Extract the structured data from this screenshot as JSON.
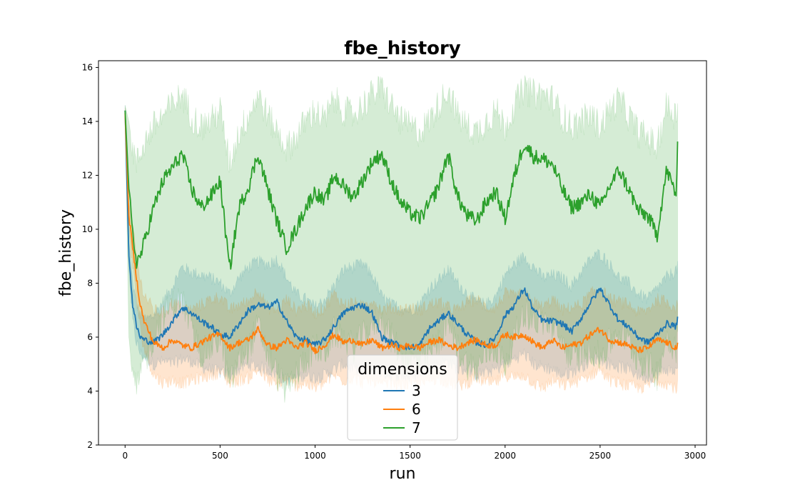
{
  "chart_data": {
    "type": "line",
    "title": "fbe_history",
    "xlabel": "run",
    "ylabel": "fbe_history",
    "xlim": [
      -140,
      3060
    ],
    "ylim": [
      2,
      16.25
    ],
    "x_ticks": [
      0,
      500,
      1000,
      1500,
      2000,
      2500,
      3000
    ],
    "y_ticks": [
      2,
      4,
      6,
      8,
      10,
      12,
      14,
      16
    ],
    "grid": false,
    "legend": {
      "title": "dimensions",
      "placement": "lower center"
    },
    "x_max": 2910,
    "series": [
      {
        "name": "3",
        "color": "#1f77b4",
        "x": [
          0,
          20,
          40,
          60,
          80,
          100,
          150,
          200,
          250,
          300,
          350,
          400,
          450,
          500,
          550,
          600,
          650,
          700,
          750,
          800,
          850,
          900,
          950,
          1000,
          1050,
          1100,
          1150,
          1200,
          1250,
          1300,
          1350,
          1400,
          1450,
          1500,
          1550,
          1600,
          1650,
          1700,
          1750,
          1800,
          1850,
          1900,
          1950,
          2000,
          2050,
          2100,
          2150,
          2200,
          2250,
          2300,
          2350,
          2400,
          2450,
          2500,
          2550,
          2600,
          2650,
          2700,
          2750,
          2800,
          2850,
          2900,
          2910
        ],
        "values": [
          14.4,
          9.0,
          7.2,
          6.4,
          6.0,
          5.9,
          5.8,
          6.1,
          6.6,
          7.1,
          6.9,
          6.6,
          6.4,
          6.1,
          6.0,
          6.5,
          7.0,
          7.2,
          7.1,
          7.3,
          6.6,
          6.0,
          5.9,
          5.7,
          5.9,
          6.4,
          6.9,
          7.1,
          7.2,
          6.9,
          6.0,
          5.8,
          5.7,
          5.6,
          5.7,
          6.3,
          6.6,
          6.9,
          6.5,
          6.1,
          5.8,
          5.7,
          6.0,
          6.8,
          7.2,
          7.8,
          7.0,
          6.6,
          6.6,
          6.5,
          6.2,
          6.7,
          7.3,
          7.8,
          7.2,
          6.6,
          6.4,
          6.0,
          5.8,
          6.1,
          6.5,
          6.4,
          6.8
        ]
      },
      {
        "name": "6",
        "color": "#ff7f0e",
        "x": [
          0,
          20,
          40,
          60,
          80,
          100,
          150,
          200,
          250,
          300,
          350,
          400,
          450,
          500,
          550,
          600,
          650,
          700,
          750,
          800,
          850,
          900,
          950,
          1000,
          1050,
          1100,
          1150,
          1200,
          1250,
          1300,
          1350,
          1400,
          1450,
          1500,
          1550,
          1600,
          1650,
          1700,
          1750,
          1800,
          1850,
          1900,
          1950,
          2000,
          2050,
          2100,
          2150,
          2200,
          2250,
          2300,
          2350,
          2400,
          2450,
          2500,
          2550,
          2600,
          2650,
          2700,
          2750,
          2800,
          2850,
          2900,
          2910
        ],
        "values": [
          14.3,
          10.5,
          9.3,
          8.2,
          7.2,
          6.6,
          5.8,
          5.6,
          5.9,
          5.7,
          5.6,
          5.8,
          6.0,
          6.1,
          5.6,
          5.8,
          5.9,
          6.3,
          5.7,
          5.6,
          5.9,
          5.6,
          5.8,
          5.5,
          5.7,
          6.1,
          5.8,
          5.9,
          5.7,
          5.9,
          5.6,
          5.7,
          5.6,
          5.7,
          5.6,
          5.8,
          5.9,
          5.7,
          5.6,
          5.8,
          5.9,
          5.7,
          5.7,
          6.1,
          6.0,
          6.1,
          5.8,
          5.6,
          5.9,
          5.6,
          5.7,
          5.8,
          6.1,
          6.3,
          5.9,
          5.8,
          5.7,
          5.5,
          5.6,
          5.9,
          5.8,
          5.6,
          5.7
        ]
      },
      {
        "name": "7",
        "color": "#2ca02c",
        "x": [
          0,
          20,
          40,
          60,
          80,
          100,
          150,
          200,
          250,
          300,
          350,
          400,
          450,
          500,
          550,
          600,
          650,
          700,
          750,
          800,
          850,
          900,
          950,
          1000,
          1050,
          1100,
          1150,
          1200,
          1250,
          1300,
          1350,
          1400,
          1450,
          1500,
          1550,
          1600,
          1650,
          1700,
          1750,
          1800,
          1850,
          1900,
          1950,
          2000,
          2050,
          2100,
          2150,
          2200,
          2250,
          2300,
          2350,
          2400,
          2450,
          2500,
          2550,
          2600,
          2650,
          2700,
          2750,
          2800,
          2850,
          2900,
          2910
        ],
        "values": [
          14.4,
          11.5,
          9.8,
          8.8,
          9.0,
          9.5,
          10.8,
          11.8,
          12.3,
          12.8,
          11.5,
          10.8,
          11.2,
          11.8,
          8.5,
          10.8,
          11.6,
          12.8,
          11.5,
          10.3,
          9.3,
          10.0,
          10.8,
          11.4,
          11.0,
          12.0,
          11.6,
          11.2,
          11.8,
          12.5,
          12.8,
          11.8,
          11.0,
          10.6,
          10.4,
          10.9,
          11.6,
          12.8,
          11.2,
          10.5,
          10.3,
          11.0,
          11.4,
          10.4,
          12.0,
          13.2,
          12.7,
          12.6,
          12.4,
          11.5,
          10.8,
          11.0,
          11.3,
          10.8,
          11.6,
          12.2,
          11.5,
          10.7,
          10.5,
          9.8,
          12.2,
          11.3,
          13.4
        ]
      }
    ],
    "bands": [
      {
        "series": "3",
        "lower": [
          14.2,
          8.5,
          6.6,
          5.8,
          5.4,
          5.3,
          5.0,
          5.1,
          5.0,
          5.2,
          5.1,
          4.9,
          4.8,
          4.7,
          4.6,
          4.8,
          5.0,
          4.9,
          4.8,
          4.6,
          4.4,
          4.5,
          4.6,
          4.5,
          4.6,
          4.8,
          5.0,
          4.8,
          4.9,
          4.8,
          4.7,
          4.6,
          4.6,
          4.5,
          4.7,
          4.9,
          5.0,
          5.1,
          4.8,
          4.8,
          4.6,
          4.7,
          4.8,
          5.0,
          5.2,
          5.4,
          5.0,
          4.9,
          4.8,
          4.6,
          4.7,
          4.9,
          5.1,
          5.2,
          5.0,
          4.9,
          4.8,
          4.6,
          4.5,
          4.6,
          4.8,
          4.7,
          5.0
        ],
        "upper": [
          14.6,
          9.6,
          8.0,
          7.2,
          6.8,
          6.6,
          6.8,
          7.3,
          7.9,
          8.6,
          8.4,
          8.3,
          8.2,
          8.0,
          7.6,
          8.2,
          8.6,
          8.8,
          8.7,
          8.9,
          8.2,
          7.6,
          7.4,
          7.1,
          7.4,
          7.9,
          8.5,
          8.6,
          8.7,
          8.3,
          7.5,
          7.2,
          7.1,
          7.0,
          7.2,
          7.8,
          8.1,
          8.5,
          8.0,
          7.6,
          7.3,
          7.2,
          7.5,
          8.3,
          8.7,
          9.0,
          8.6,
          8.2,
          8.3,
          8.2,
          7.9,
          8.4,
          8.9,
          9.1,
          8.7,
          8.2,
          8.0,
          7.6,
          7.4,
          7.8,
          8.2,
          8.5,
          8.6
        ]
      },
      {
        "series": "6",
        "lower": [
          14.1,
          10.0,
          8.6,
          7.4,
          6.3,
          5.6,
          4.6,
          4.3,
          4.4,
          4.3,
          4.4,
          4.5,
          4.6,
          4.7,
          4.3,
          4.4,
          4.5,
          4.8,
          4.4,
          4.2,
          4.4,
          4.2,
          4.3,
          4.1,
          4.3,
          4.6,
          4.4,
          4.5,
          4.3,
          4.4,
          4.2,
          4.3,
          4.2,
          4.3,
          4.2,
          4.4,
          4.5,
          4.3,
          4.2,
          4.3,
          4.5,
          4.3,
          4.3,
          4.6,
          4.5,
          4.6,
          4.3,
          4.1,
          4.4,
          4.2,
          4.3,
          4.4,
          4.6,
          4.8,
          4.4,
          4.3,
          4.2,
          4.1,
          4.2,
          4.4,
          4.3,
          4.1,
          4.2
        ],
        "upper": [
          14.5,
          11.0,
          10.0,
          9.0,
          8.1,
          7.6,
          7.0,
          6.9,
          7.3,
          7.1,
          7.0,
          7.2,
          7.4,
          7.5,
          7.0,
          7.2,
          7.3,
          7.8,
          7.1,
          7.0,
          7.4,
          7.0,
          7.2,
          6.9,
          7.1,
          7.6,
          7.2,
          7.3,
          7.1,
          7.4,
          7.0,
          7.1,
          7.0,
          7.1,
          7.0,
          7.2,
          7.3,
          7.1,
          7.0,
          7.3,
          7.4,
          7.1,
          7.1,
          7.6,
          7.5,
          7.6,
          7.3,
          7.1,
          7.4,
          7.0,
          7.1,
          7.2,
          7.6,
          7.8,
          7.4,
          7.3,
          7.2,
          6.9,
          7.0,
          7.4,
          7.3,
          7.1,
          7.2
        ]
      },
      {
        "series": "7",
        "lower": [
          14.2,
          6.0,
          4.5,
          4.0,
          4.6,
          5.0,
          6.0,
          6.8,
          7.2,
          7.4,
          6.2,
          5.4,
          5.6,
          6.0,
          4.2,
          5.2,
          5.6,
          6.4,
          5.4,
          4.6,
          4.0,
          4.6,
          5.2,
          5.6,
          5.4,
          6.2,
          6.0,
          5.6,
          6.0,
          6.4,
          6.8,
          6.0,
          5.4,
          5.2,
          5.0,
          5.4,
          5.8,
          6.6,
          5.6,
          5.0,
          4.8,
          5.4,
          5.6,
          5.0,
          6.0,
          7.0,
          6.6,
          6.6,
          6.4,
          5.8,
          5.2,
          5.4,
          5.6,
          5.2,
          5.8,
          6.2,
          5.8,
          5.2,
          5.0,
          4.6,
          6.0,
          5.6,
          7.0
        ],
        "upper": [
          14.6,
          14.0,
          13.0,
          12.4,
          12.8,
          13.2,
          13.8,
          14.2,
          14.6,
          15.0,
          14.2,
          13.8,
          14.0,
          14.4,
          12.4,
          13.6,
          14.2,
          15.0,
          14.2,
          13.6,
          13.0,
          13.4,
          14.0,
          14.4,
          14.0,
          14.8,
          14.4,
          14.2,
          14.6,
          15.0,
          15.2,
          14.6,
          14.0,
          13.8,
          13.6,
          14.0,
          14.6,
          15.2,
          14.2,
          13.8,
          13.6,
          14.0,
          14.4,
          13.8,
          14.6,
          15.2,
          15.0,
          15.0,
          14.8,
          14.2,
          13.8,
          14.0,
          14.2,
          13.8,
          14.4,
          14.8,
          14.2,
          13.6,
          13.4,
          13.0,
          14.6,
          14.2,
          14.8
        ]
      }
    ]
  }
}
